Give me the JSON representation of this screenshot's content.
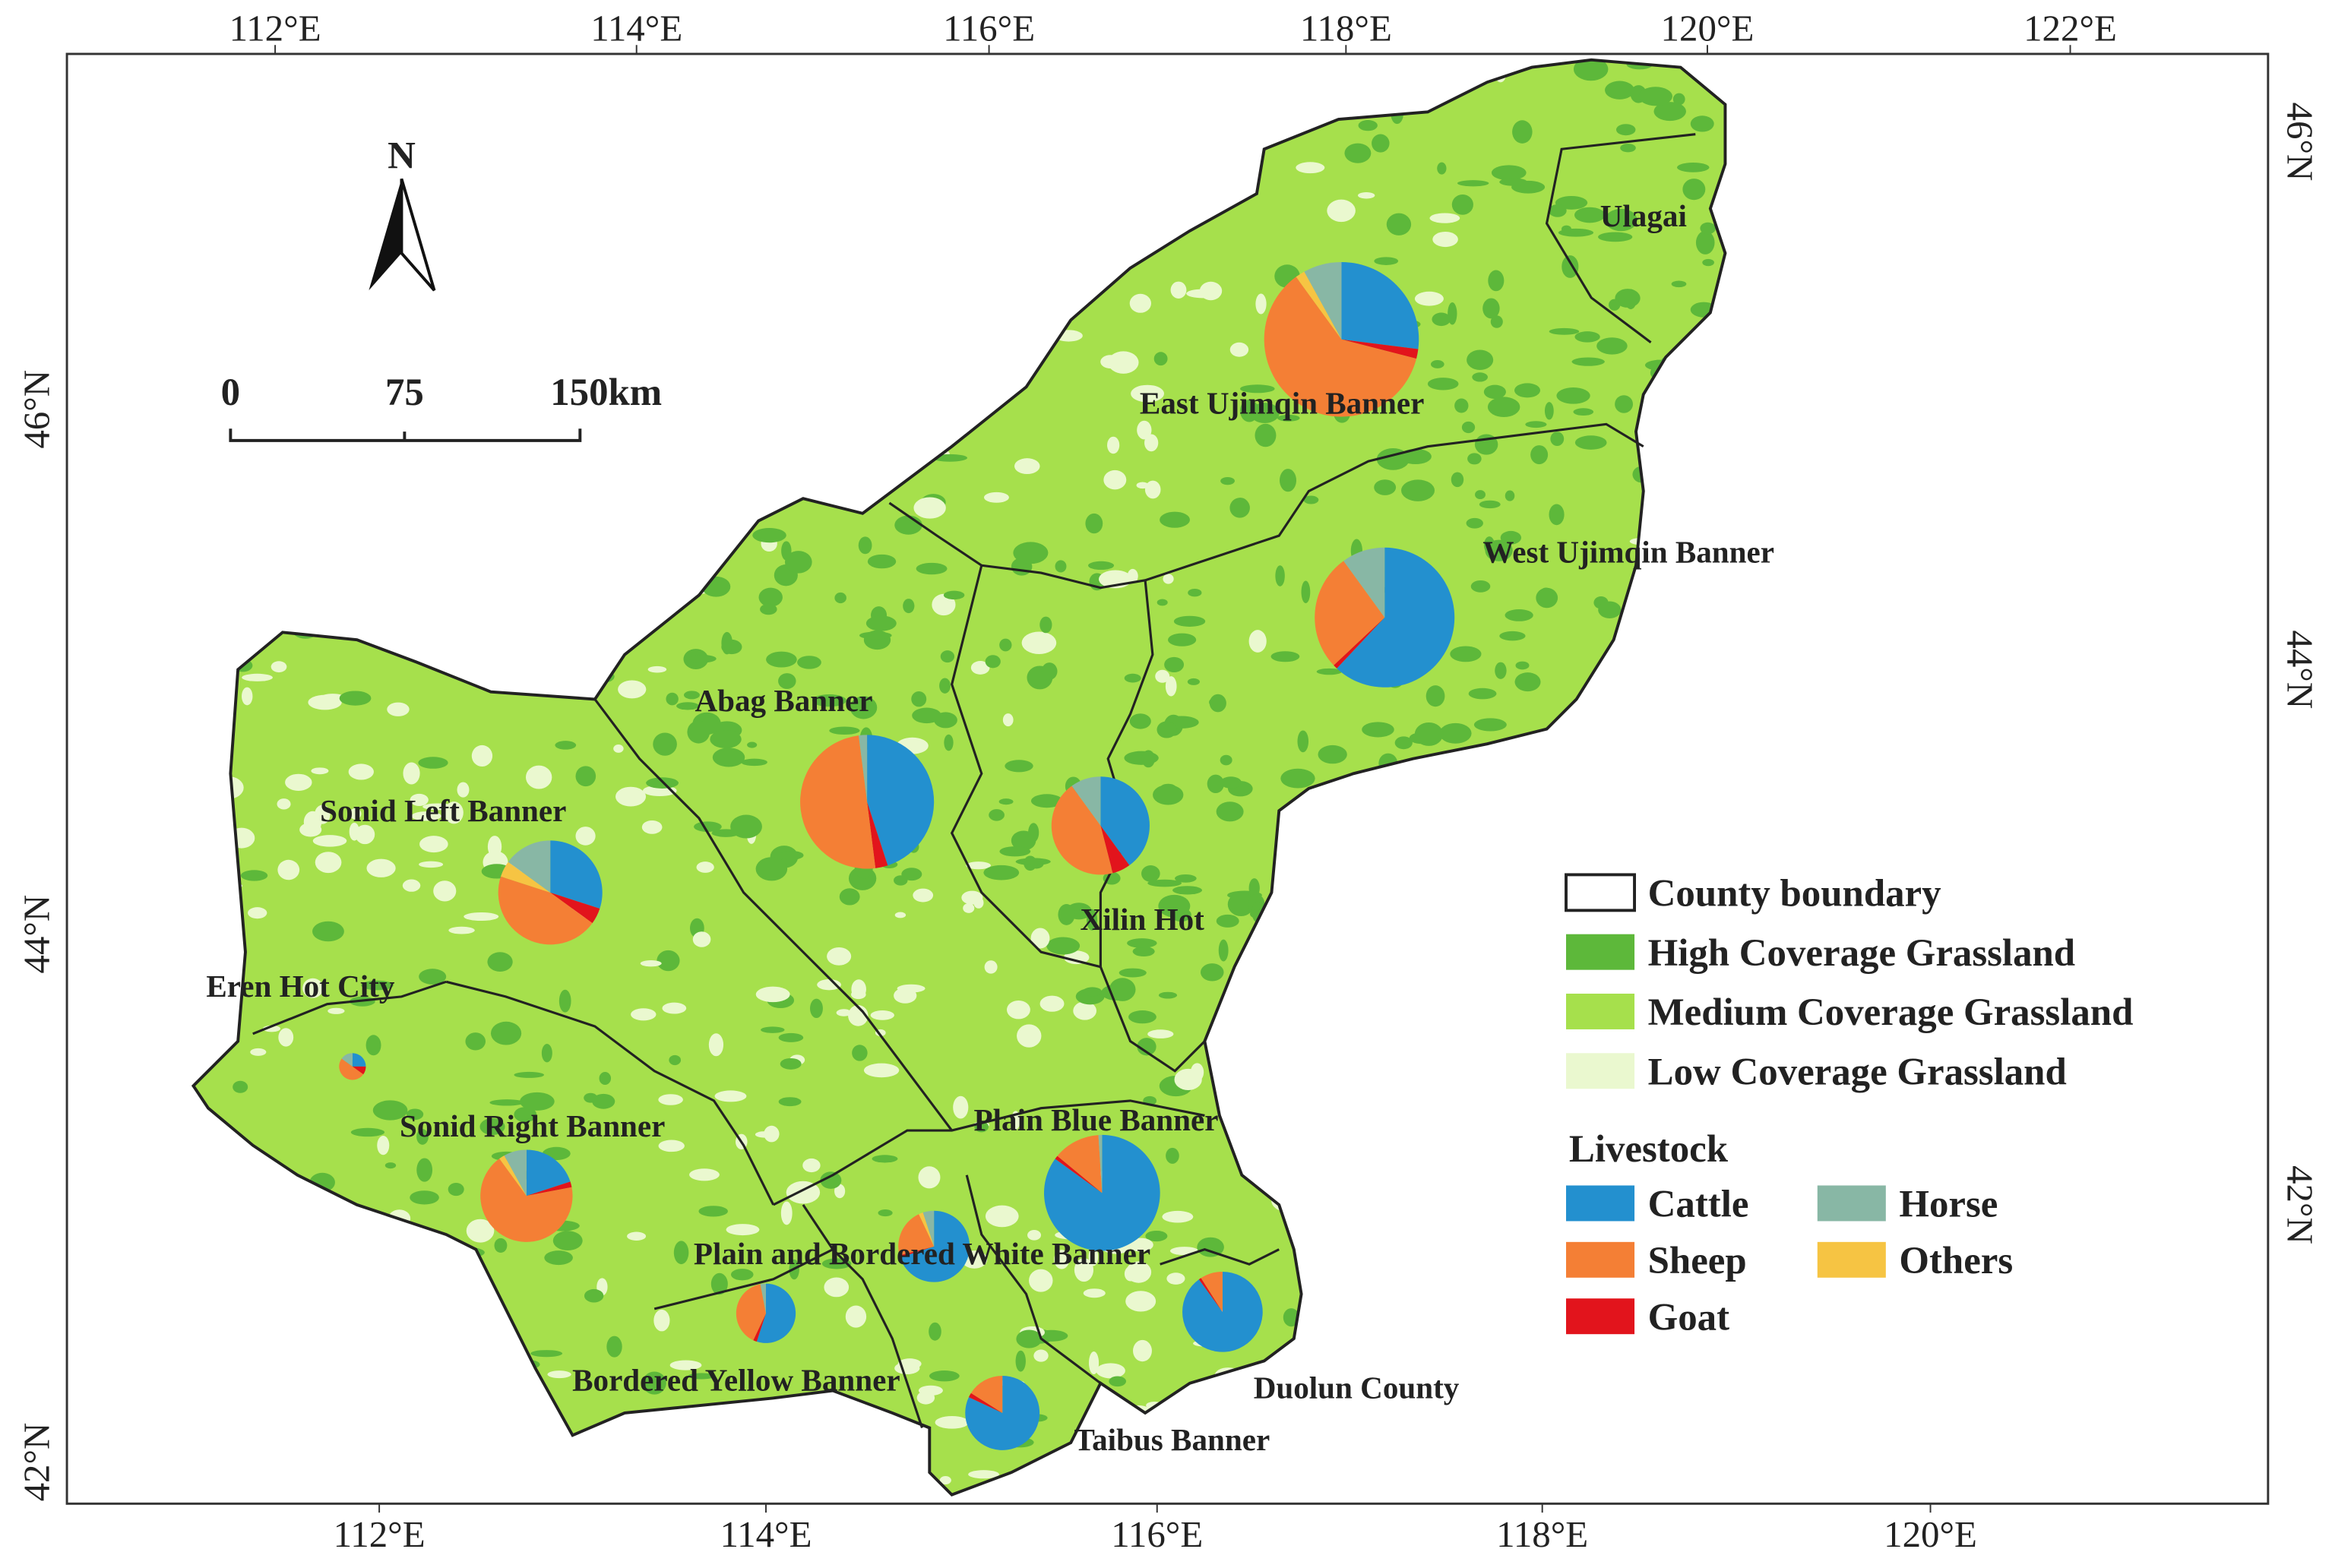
{
  "axes": {
    "top": [
      "112°E",
      "114°E",
      "116°E",
      "118°E",
      "120°E",
      "122°E"
    ],
    "bottom": [
      "112°E",
      "114°E",
      "116°E",
      "118°E",
      "120°E"
    ],
    "left": [
      "46°N",
      "44°N",
      "42°N"
    ],
    "right": [
      "46°N",
      "44°N",
      "42°N"
    ]
  },
  "north_arrow": "N",
  "scale_bar": [
    "0",
    "75",
    "150km"
  ],
  "regions": [
    {
      "name": "East Ujimqin Banner",
      "shares": [
        27,
        61,
        2,
        8,
        2
      ]
    },
    {
      "name": "Ulagai",
      "shares": null
    },
    {
      "name": "West Ujimqin Banner",
      "shares": [
        62,
        27,
        1,
        10,
        0
      ]
    },
    {
      "name": "Abag Banner",
      "shares": [
        45,
        50,
        3,
        2,
        0
      ]
    },
    {
      "name": "Xilin Hot",
      "shares": [
        40,
        44,
        6,
        10,
        0
      ]
    },
    {
      "name": "Sonid Left Banner",
      "shares": [
        30,
        45,
        5,
        15,
        5
      ]
    },
    {
      "name": "Eren Hot City",
      "shares": [
        25,
        50,
        10,
        15,
        0
      ]
    },
    {
      "name": "Sonid Right Banner",
      "shares": [
        20,
        68,
        2,
        8,
        2
      ]
    },
    {
      "name": "Plain Blue Banner",
      "shares": [
        85,
        13,
        1,
        1,
        0
      ]
    },
    {
      "name": "Plain and Bordered White Banner",
      "shares": [
        70,
        22,
        1,
        5,
        2
      ]
    },
    {
      "name": "Bordered Yellow Banner",
      "shares": [
        55,
        40,
        2,
        3,
        0
      ]
    },
    {
      "name": "Duolun County",
      "shares": [
        90,
        9,
        1,
        0,
        0
      ]
    },
    {
      "name": "Taibus Banner",
      "shares": [
        82,
        16,
        2,
        0,
        0
      ]
    }
  ],
  "legend": {
    "land": [
      {
        "label": "County boundary",
        "color": "#ffffff"
      },
      {
        "label": "High Coverage Grassland",
        "color": "#5db83a"
      },
      {
        "label": "Medium Coverage Grassland",
        "color": "#a6e04c"
      },
      {
        "label": "Low Coverage Grassland",
        "color": "#eaf8cf"
      }
    ],
    "livestock_title": "Livestock",
    "livestock": [
      {
        "label": "Cattle",
        "color": "#2390cf"
      },
      {
        "label": "Sheep",
        "color": "#f47f35"
      },
      {
        "label": "Goat",
        "color": "#e2141c"
      },
      {
        "label": "Horse",
        "color": "#88b7a5"
      },
      {
        "label": "Others",
        "color": "#f6c443"
      }
    ]
  }
}
